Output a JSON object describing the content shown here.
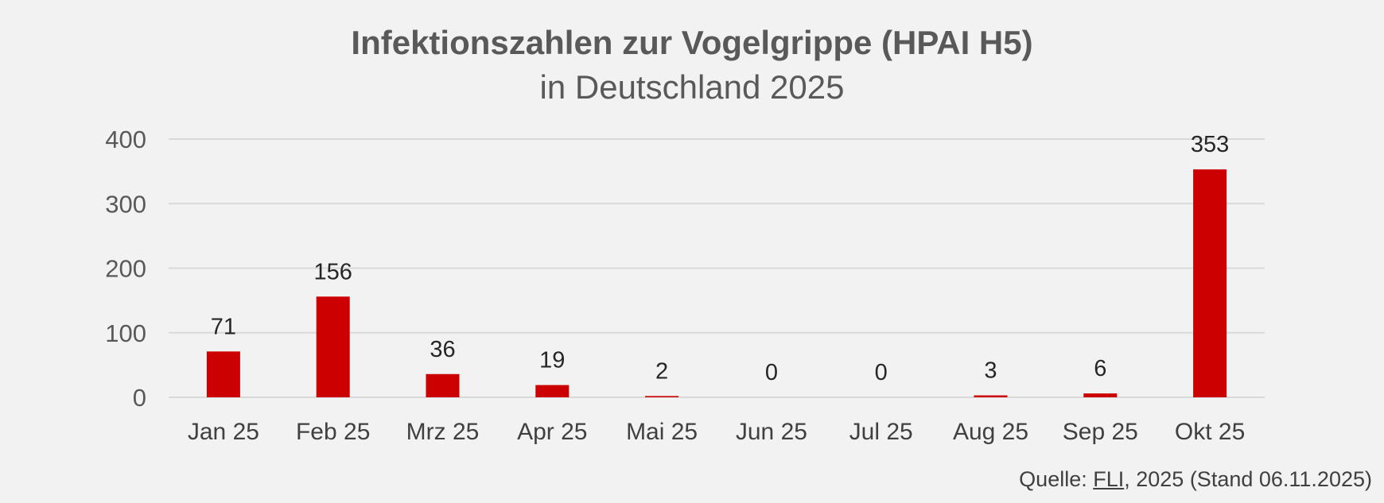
{
  "chart_data": {
    "type": "bar",
    "title": "Infektionszahlen zur Vogelgrippe (HPAI H5)",
    "subtitle": "in Deutschland 2025",
    "categories": [
      "Jan 25",
      "Feb 25",
      "Mrz 25",
      "Apr 25",
      "Mai 25",
      "Jun 25",
      "Jul 25",
      "Aug 25",
      "Sep 25",
      "Okt 25"
    ],
    "values": [
      71,
      156,
      36,
      19,
      2,
      0,
      0,
      3,
      6,
      353
    ],
    "data_labels": [
      "71",
      "156",
      "36",
      "19",
      "2",
      "0",
      "0",
      "3",
      "6",
      "353"
    ],
    "yticks": [
      0,
      100,
      200,
      300,
      400
    ],
    "ytick_labels": [
      "0",
      "100",
      "200",
      "300",
      "400"
    ],
    "ylim": [
      0,
      400
    ],
    "xlabel": "",
    "ylabel": "",
    "grid": true,
    "legend": false,
    "bar_color": "#cc0000",
    "grid_color": "#d9d9d9"
  },
  "source": {
    "prefix": "Quelle: ",
    "link": "FLI",
    "suffix": ", 2025 (Stand 06.11.2025)"
  }
}
